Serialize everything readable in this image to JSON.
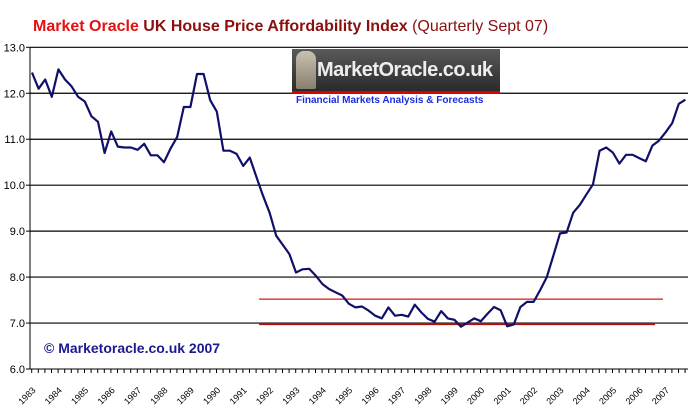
{
  "chart_data": {
    "type": "line",
    "title_parts": [
      "Market Oracle",
      "UK House Price Affordability Index",
      "(Quarterly Sept 07)"
    ],
    "xlabel": "",
    "ylabel": "",
    "ylim": [
      6.0,
      13.0
    ],
    "yticks": [
      "6.0",
      "7.0",
      "8.0",
      "9.0",
      "10.0",
      "11.0",
      "12.0",
      "13.0"
    ],
    "xticks": [
      "1983",
      "1984",
      "1985",
      "1986",
      "1987",
      "1988",
      "1989",
      "1990",
      "1991",
      "1992",
      "1993",
      "1994",
      "1995",
      "1996",
      "1997",
      "1998",
      "1999",
      "2000",
      "2001",
      "2002",
      "2003",
      "2004",
      "2005",
      "2006",
      "2007"
    ],
    "grid": true,
    "x_start": "1983 Q1",
    "x_step": "quarter",
    "series": [
      {
        "name": "Affordability Index",
        "color": "#10106a",
        "values": [
          12.45,
          12.1,
          12.3,
          11.92,
          12.52,
          12.3,
          12.15,
          11.92,
          11.82,
          11.5,
          11.38,
          10.7,
          11.17,
          10.84,
          10.82,
          10.82,
          10.77,
          10.9,
          10.65,
          10.65,
          10.5,
          10.8,
          11.05,
          11.7,
          11.7,
          12.42,
          12.42,
          11.85,
          11.6,
          10.75,
          10.75,
          10.68,
          10.42,
          10.6,
          10.18,
          9.77,
          9.4,
          8.9,
          8.7,
          8.5,
          8.1,
          8.17,
          8.18,
          8.03,
          7.85,
          7.74,
          7.67,
          7.6,
          7.42,
          7.34,
          7.36,
          7.27,
          7.16,
          7.1,
          7.34,
          7.16,
          7.18,
          7.14,
          7.4,
          7.23,
          7.09,
          7.03,
          7.26,
          7.1,
          7.07,
          6.92,
          7.01,
          7.1,
          7.04,
          7.2,
          7.35,
          7.28,
          6.93,
          6.97,
          7.35,
          7.46,
          7.46,
          7.72,
          8.0,
          8.47,
          8.95,
          8.97,
          9.4,
          9.57,
          9.8,
          10.02,
          10.75,
          10.82,
          10.71,
          10.47,
          10.66,
          10.66,
          10.59,
          10.52,
          10.86,
          10.97,
          11.15,
          11.35,
          11.77,
          11.86
        ]
      }
    ],
    "reference_lines": [
      {
        "value": 7.52,
        "from_year": 1991.6,
        "to_year": 2006.9,
        "color": "#d01818"
      },
      {
        "value": 6.97,
        "from_year": 1991.6,
        "to_year": 2006.6,
        "color": "#b01010"
      }
    ]
  },
  "logo": {
    "text": "MarketOracle.co.uk",
    "tagline": "Financial Markets Analysis & Forecasts"
  },
  "copyright": "© Marketoracle.co.uk 2007"
}
